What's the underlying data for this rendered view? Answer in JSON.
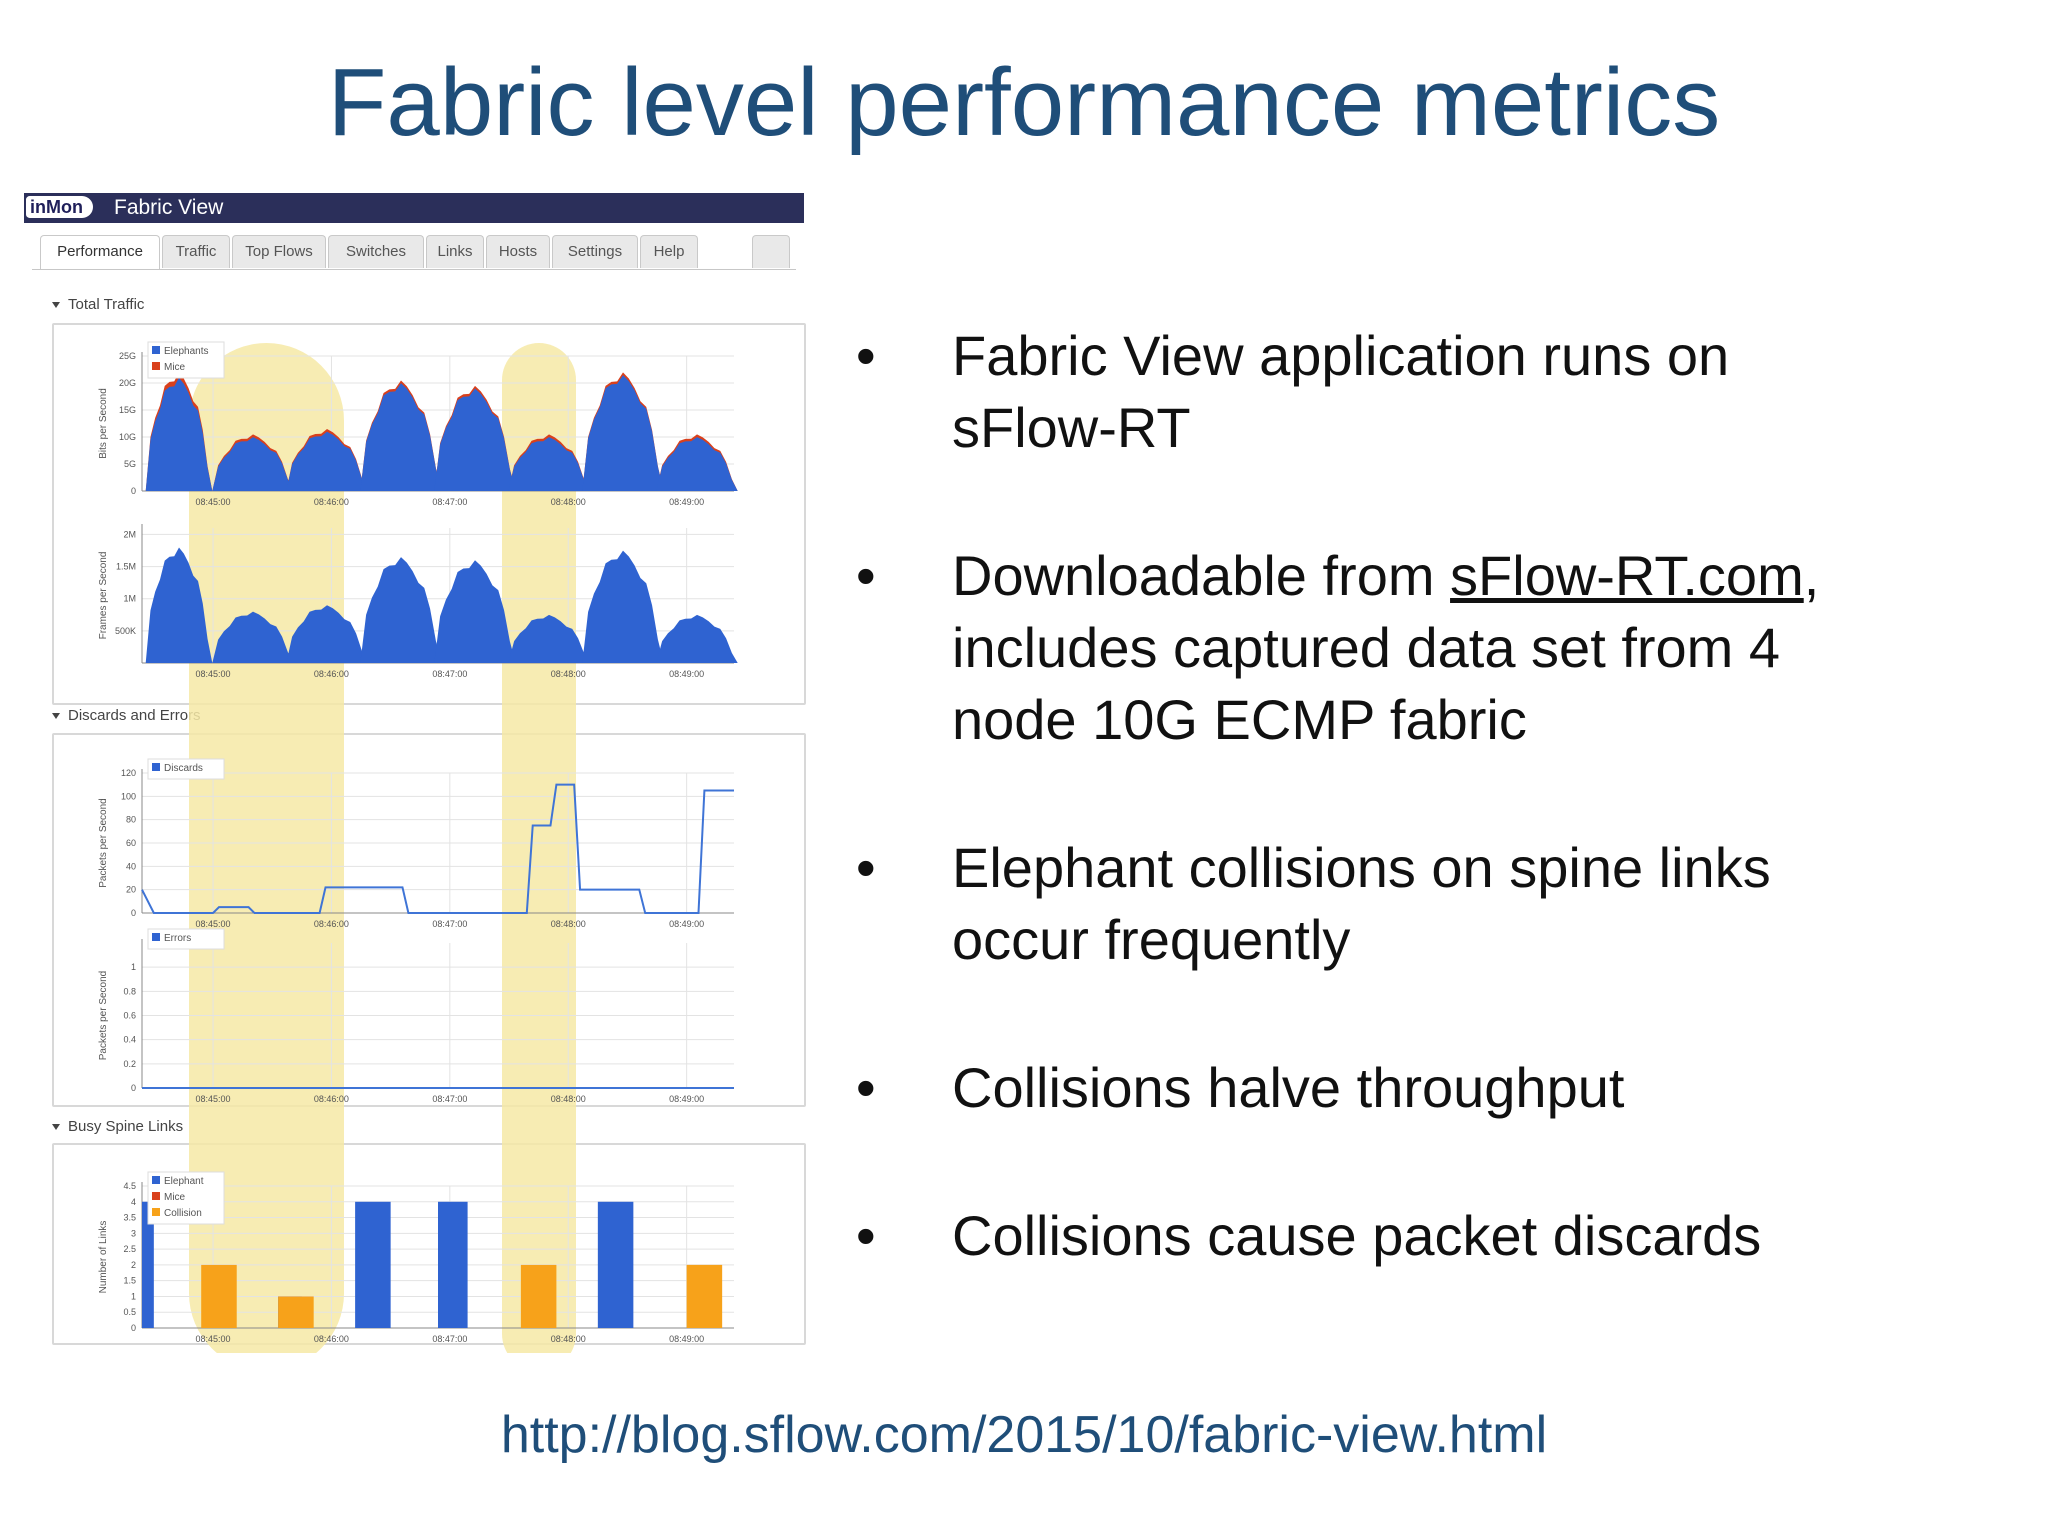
{
  "slide": {
    "title": "Fabric level performance metrics",
    "url": "http://blog.sflow.com/2015/10/fabric-view.html",
    "bullets": [
      {
        "lines": [
          "Fabric View application runs on",
          "sFlow-RT"
        ]
      },
      {
        "pre": "Downloadable from ",
        "link": "sFlow-RT.com",
        "post": ",",
        "lines": [
          "includes captured data set from 4",
          "node 10G ECMP fabric"
        ]
      },
      {
        "lines": [
          "Elephant collisions on spine links",
          "occur frequently"
        ]
      },
      {
        "lines": [
          "Collisions halve throughput"
        ]
      },
      {
        "lines": [
          "Collisions cause packet discards"
        ]
      }
    ]
  },
  "app": {
    "logo": "inMon",
    "title": "Fabric View",
    "tabs": [
      "Performance",
      "Traffic",
      "Top Flows",
      "Switches",
      "Links",
      "Hosts",
      "Settings",
      "Help"
    ],
    "active_tab": "Performance",
    "panels": {
      "total_traffic": "Total Traffic",
      "discards_errors": "Discards and Errors",
      "busy_spine": "Busy Spine Links"
    },
    "colors": {
      "elephants": "#2f63d1",
      "mice": "#d9401c",
      "collision": "#f7a21a",
      "highlight": "#f6e9a6",
      "line": "#3f74d6"
    }
  },
  "chart_data": [
    {
      "type": "area",
      "ylabel": "Bits per Second",
      "yticks": [
        "0",
        "5G",
        "10G",
        "15G",
        "20G",
        "25G"
      ],
      "ylim": [
        0,
        25
      ],
      "xticks": [
        "08:45:00",
        "08:46:00",
        "08:47:00",
        "08:48:00",
        "08:49:00"
      ],
      "series": [
        {
          "name": "Elephants",
          "bursts": [
            [
              0,
              4.5,
              21
            ],
            [
              1,
              5.5,
              10
            ],
            [
              2,
              5.5,
              11
            ],
            [
              3,
              5.5,
              20
            ],
            [
              4,
              5.5,
              19
            ],
            [
              5,
              5.5,
              10
            ],
            [
              6,
              5.5,
              21.5
            ],
            [
              7,
              5.5,
              10
            ]
          ]
        },
        {
          "name": "Mice",
          "bursts": [
            [
              0,
              4.5,
              22
            ],
            [
              1,
              5.5,
              10.5
            ],
            [
              2,
              5.5,
              11.5
            ],
            [
              3,
              5.5,
              20.5
            ],
            [
              4,
              5.5,
              19.5
            ],
            [
              5,
              5.5,
              10.5
            ],
            [
              6,
              5.5,
              22
            ],
            [
              7,
              5.5,
              10.5
            ]
          ]
        }
      ]
    },
    {
      "type": "area",
      "ylabel": "Frames per Second",
      "yticks": [
        "500K",
        "1M",
        "1.5M",
        "2M"
      ],
      "ylim": [
        0,
        2.1
      ],
      "xticks": [
        "08:45:00",
        "08:46:00",
        "08:47:00",
        "08:48:00",
        "08:49:00"
      ],
      "series": [
        {
          "name": "",
          "bursts": [
            [
              0,
              4.5,
              1.8
            ],
            [
              1,
              5.5,
              0.8
            ],
            [
              2,
              5.5,
              0.9
            ],
            [
              3,
              5.5,
              1.65
            ],
            [
              4,
              5.5,
              1.6
            ],
            [
              5,
              5.5,
              0.75
            ],
            [
              6,
              5.5,
              1.75
            ],
            [
              7,
              5.5,
              0.75
            ]
          ]
        }
      ]
    },
    {
      "type": "line",
      "ylabel": "Packets per Second",
      "yticks": [
        "0",
        "20",
        "40",
        "60",
        "80",
        "100",
        "120"
      ],
      "ylim": [
        0,
        120
      ],
      "xticks": [
        "08:45:00",
        "08:46:00",
        "08:47:00",
        "08:48:00",
        "08:49:00"
      ],
      "series": [
        {
          "name": "Discards",
          "x": [
            0,
            2,
            12,
            13,
            18,
            19,
            30,
            31,
            44,
            45,
            65,
            66,
            69,
            70,
            73,
            74,
            84,
            85,
            89,
            90,
            94,
            95,
            100
          ],
          "y": [
            20,
            0,
            0,
            5,
            5,
            0,
            0,
            22,
            22,
            0,
            0,
            75,
            75,
            110,
            110,
            20,
            20,
            0,
            0,
            0,
            0,
            105,
            105
          ]
        }
      ]
    },
    {
      "type": "line",
      "ylabel": "Packets per Second",
      "yticks": [
        "0",
        "0.2",
        "0.4",
        "0.6",
        "0.8",
        "1"
      ],
      "ylim": [
        0,
        1.2
      ],
      "xticks": [
        "08:45:00",
        "08:46:00",
        "08:47:00",
        "08:48:00",
        "08:49:00"
      ],
      "series": [
        {
          "name": "Errors",
          "x": [
            0,
            100
          ],
          "y": [
            0,
            0
          ]
        }
      ]
    },
    {
      "type": "bar",
      "ylabel": "Number of Links",
      "yticks": [
        "0",
        "0.5",
        "1",
        "1.5",
        "2",
        "2.5",
        "3",
        "3.5",
        "4",
        "4.5"
      ],
      "ylim": [
        0,
        4.5
      ],
      "xticks": [
        "08:45:00",
        "08:46:00",
        "08:47:00",
        "08:48:00",
        "08:49:00"
      ],
      "series": [
        {
          "name": "Elephant",
          "blocks": [
            [
              0,
              2,
              4
            ],
            [
              23,
              27,
              1
            ],
            [
              36,
              42,
              4
            ],
            [
              50,
              55,
              4
            ],
            [
              77,
              83,
              4
            ]
          ]
        },
        {
          "name": "Mice",
          "blocks": []
        },
        {
          "name": "Collision",
          "blocks": [
            [
              10,
              16,
              2
            ],
            [
              23,
              29,
              1
            ],
            [
              64,
              70,
              2
            ],
            [
              92,
              98,
              2
            ]
          ]
        }
      ]
    }
  ]
}
